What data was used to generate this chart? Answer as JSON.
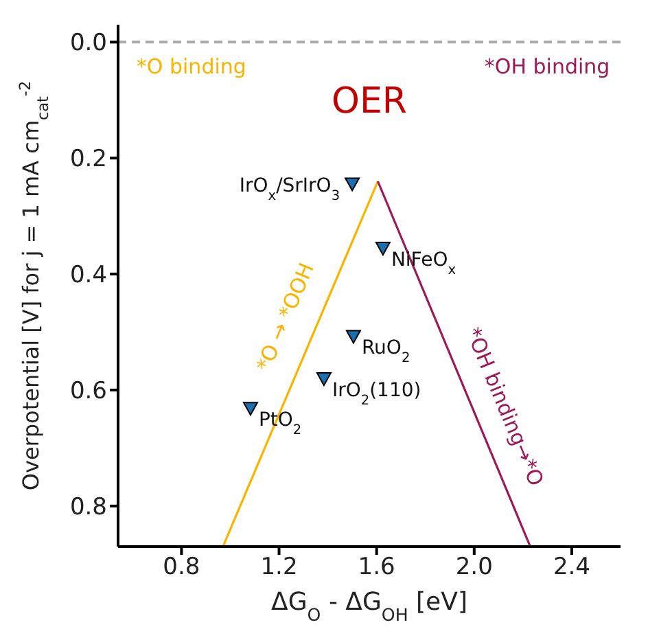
{
  "chart_data": {
    "type": "scatter",
    "title": "OER",
    "xlabel": "ΔG$_{O}$ - ΔG$_{OH}$ [eV]",
    "ylabel": "Overpotential [V] for j = 1 mA cm$_{cat}$$^{-2}$",
    "xlim": [
      0.54,
      2.6
    ],
    "xticks": [
      0.8,
      1.2,
      1.6,
      {
        "value": 2,
        "label": "2.0"
      },
      2.4
    ],
    "ylim": [
      0.87,
      -0.03
    ],
    "yticks": [
      {
        "value": 0,
        "label": "0.0"
      },
      0.2,
      0.4,
      0.6,
      0.8
    ],
    "series": [
      {
        "type": "line",
        "color": "#f7b500",
        "x": [
          0.97,
          1.605
        ],
        "values": [
          0.87,
          0.24
        ]
      },
      {
        "type": "line",
        "color": "#9b1b5a",
        "x": [
          1.605,
          2.23
        ],
        "values": [
          0.24,
          0.87
        ]
      },
      {
        "name": "IrO$_{x}$/SrIrO$_{3}$",
        "color": "#1a6fb0",
        "marker": "triangle",
        "x": [
          1.5
        ],
        "values": [
          0.244
        ]
      },
      {
        "name": "NiFeO$_{x}$",
        "color": "#1a6fb0",
        "marker": "triangle",
        "x": [
          1.626
        ],
        "values": [
          0.355
        ]
      },
      {
        "name": "RuO$_{2}$",
        "color": "#1a6fb0",
        "marker": "triangle",
        "x": [
          1.505
        ],
        "values": [
          0.507
        ]
      },
      {
        "name": "IrO$_{2}$(110)",
        "color": "#1a6fb0",
        "marker": "triangle",
        "x": [
          1.384
        ],
        "values": [
          0.58
        ]
      },
      {
        "name": "PtO$_{2}$",
        "color": "#1a6fb0",
        "marker": "triangle",
        "x": [
          1.083
        ],
        "values": [
          0.631
        ]
      }
    ],
    "ref_lines": [
      {
        "axis": "y",
        "value": 0,
        "color": "#aaaaaa",
        "line_style": "dashed"
      }
    ],
    "annotations": [
      "*O binding",
      "*OH binding",
      "*O → *OOH",
      "*OH binding→*O"
    ]
  }
}
